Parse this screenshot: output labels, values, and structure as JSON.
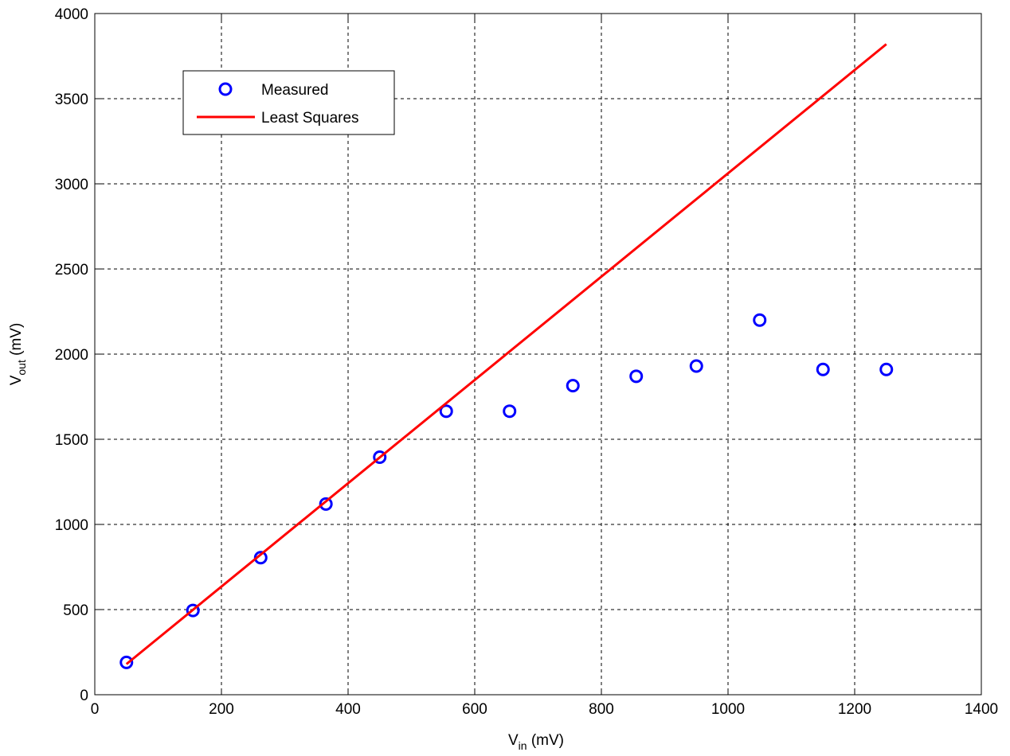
{
  "chart_data": {
    "type": "scatter",
    "title": "",
    "x_axis": {
      "label_main": "V",
      "label_sub": "in",
      "label_unit": " (mV)",
      "range": [
        0,
        1400
      ],
      "ticks": [
        0,
        200,
        400,
        600,
        800,
        1000,
        1200,
        1400
      ],
      "tick_labels": [
        "0",
        "200",
        "400",
        "600",
        "800",
        "1000",
        "1200",
        "1400"
      ]
    },
    "y_axis": {
      "label_main": "V",
      "label_sub": "out",
      "label_unit": " (mV)",
      "range": [
        0,
        4000
      ],
      "ticks": [
        0,
        500,
        1000,
        1500,
        2000,
        2500,
        3000,
        3500,
        4000
      ],
      "tick_labels": [
        "0",
        "500",
        "1000",
        "1500",
        "2000",
        "2500",
        "3000",
        "3500",
        "4000"
      ]
    },
    "grid": true,
    "legend_position": "top-left",
    "series": [
      {
        "name": "Measured",
        "kind": "markers",
        "marker": "circle-open",
        "color": "#0000ff",
        "x": [
          50,
          155,
          262,
          365,
          450,
          555,
          655,
          755,
          855,
          950,
          1050,
          1150,
          1250
        ],
        "y": [
          190,
          495,
          805,
          1120,
          1395,
          1665,
          1665,
          1815,
          1870,
          1930,
          2200,
          1910,
          1910
        ]
      },
      {
        "name": "Least Squares",
        "kind": "line",
        "color": "#ff0000",
        "x": [
          50,
          1250
        ],
        "y": [
          180,
          3820
        ]
      }
    ]
  }
}
